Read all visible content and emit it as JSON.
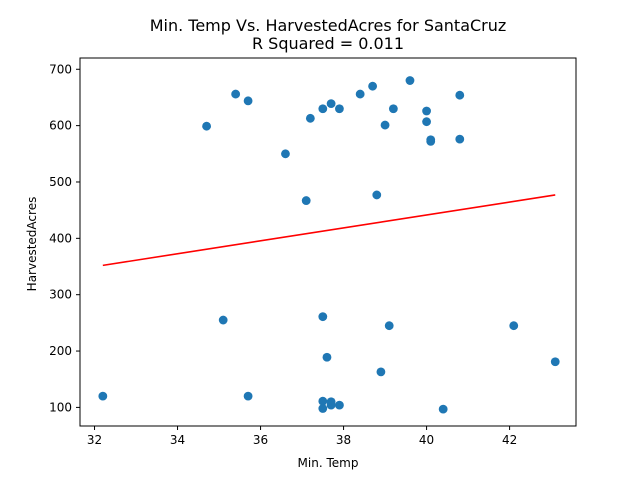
{
  "chart_data": {
    "type": "scatter",
    "title": "Min. Temp Vs. HarvestedAcres for SantaCruz",
    "subtitle": "R Squared =  0.011",
    "xlabel": "Min. Temp",
    "ylabel": "HarvestedAcres",
    "xlim": [
      31.65,
      43.6
    ],
    "ylim": [
      67,
      720
    ],
    "xticks": [
      32,
      34,
      36,
      38,
      40,
      42
    ],
    "yticks": [
      100,
      200,
      300,
      400,
      500,
      600,
      700
    ],
    "grid": false,
    "colors": {
      "points": "#1f77b4",
      "regression": "#ff0000"
    },
    "points": [
      {
        "x": 32.2,
        "y": 120
      },
      {
        "x": 34.7,
        "y": 599
      },
      {
        "x": 35.1,
        "y": 255
      },
      {
        "x": 35.4,
        "y": 656
      },
      {
        "x": 35.7,
        "y": 644
      },
      {
        "x": 35.7,
        "y": 120
      },
      {
        "x": 36.6,
        "y": 550
      },
      {
        "x": 37.1,
        "y": 467
      },
      {
        "x": 37.2,
        "y": 613
      },
      {
        "x": 37.5,
        "y": 630
      },
      {
        "x": 37.5,
        "y": 261
      },
      {
        "x": 37.5,
        "y": 111
      },
      {
        "x": 37.5,
        "y": 98
      },
      {
        "x": 37.6,
        "y": 189
      },
      {
        "x": 37.7,
        "y": 639
      },
      {
        "x": 37.7,
        "y": 110
      },
      {
        "x": 37.7,
        "y": 104
      },
      {
        "x": 37.9,
        "y": 630
      },
      {
        "x": 37.9,
        "y": 104
      },
      {
        "x": 38.4,
        "y": 656
      },
      {
        "x": 38.7,
        "y": 670
      },
      {
        "x": 38.8,
        "y": 477
      },
      {
        "x": 38.9,
        "y": 163
      },
      {
        "x": 39.0,
        "y": 601
      },
      {
        "x": 39.1,
        "y": 245
      },
      {
        "x": 39.2,
        "y": 630
      },
      {
        "x": 39.6,
        "y": 680
      },
      {
        "x": 40.0,
        "y": 626
      },
      {
        "x": 40.0,
        "y": 607
      },
      {
        "x": 40.1,
        "y": 575
      },
      {
        "x": 40.1,
        "y": 572
      },
      {
        "x": 40.4,
        "y": 97
      },
      {
        "x": 40.8,
        "y": 654
      },
      {
        "x": 40.8,
        "y": 576
      },
      {
        "x": 42.1,
        "y": 245
      },
      {
        "x": 43.1,
        "y": 181
      }
    ],
    "regression_line": [
      {
        "x": 32.2,
        "y": 352
      },
      {
        "x": 43.1,
        "y": 477
      }
    ]
  }
}
